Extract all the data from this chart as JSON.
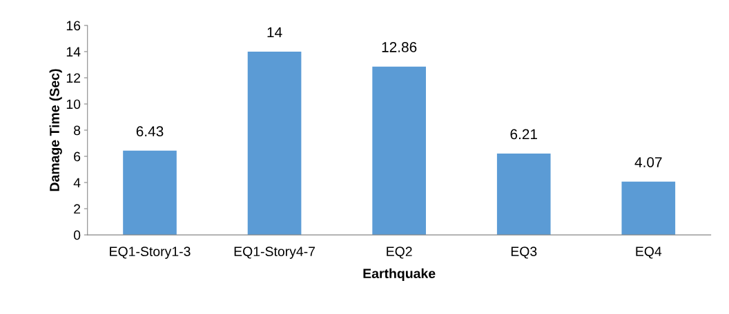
{
  "chart_data": {
    "type": "bar",
    "xlabel": "Earthquake",
    "ylabel": "Damage Time (Sec)",
    "categories": [
      "EQ1-Story1-3",
      "EQ1-Story4-7",
      "EQ2",
      "EQ3",
      "EQ4"
    ],
    "values": [
      6.43,
      14,
      12.86,
      6.21,
      4.07
    ],
    "color": "#5b9bd5",
    "ylim": [
      0,
      16
    ],
    "yticks": [
      0,
      2,
      4,
      6,
      8,
      10,
      12,
      14,
      16
    ],
    "grid": false,
    "data_labels": true
  }
}
